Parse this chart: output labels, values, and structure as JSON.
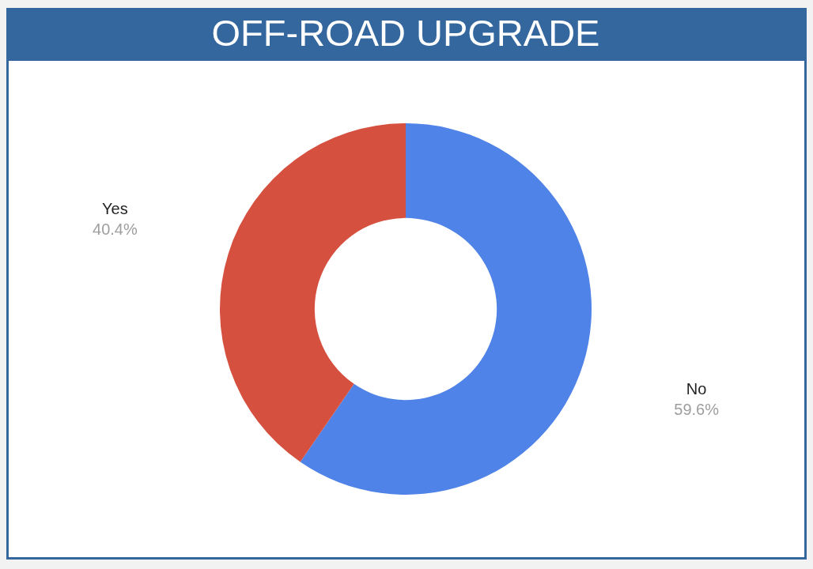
{
  "chart_data": {
    "type": "donut",
    "title": "OFF-ROAD UPGRADE",
    "categories": [
      "No",
      "Yes"
    ],
    "values": [
      59.6,
      40.4
    ],
    "colors": [
      "#4f83e7",
      "#d5503f"
    ],
    "value_labels": [
      "59.6%",
      "40.4%"
    ]
  }
}
